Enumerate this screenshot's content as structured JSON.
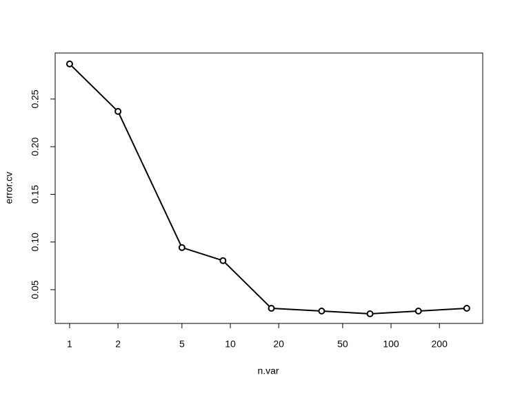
{
  "chart_data": {
    "type": "line",
    "x_label": "n.var",
    "y_label": "error.cv",
    "x": [
      1,
      2,
      5,
      9,
      18,
      37,
      74,
      148,
      296
    ],
    "values": [
      0.2868,
      0.237,
      0.0942,
      0.0805,
      0.0305,
      0.0276,
      0.0247,
      0.0276,
      0.0305
    ],
    "color": "#000000",
    "xlog": true,
    "xlim": [
      0.813,
      372
    ],
    "ylim": [
      0.0146,
      0.2983
    ],
    "xticks": [
      1,
      2,
      5,
      10,
      20,
      50,
      100,
      200
    ],
    "yticks": [
      0.05,
      {
        "value": 0.1,
        "label": "0.10"
      },
      0.15,
      {
        "value": 0.2,
        "label": "0.20"
      },
      0.25
    ]
  }
}
